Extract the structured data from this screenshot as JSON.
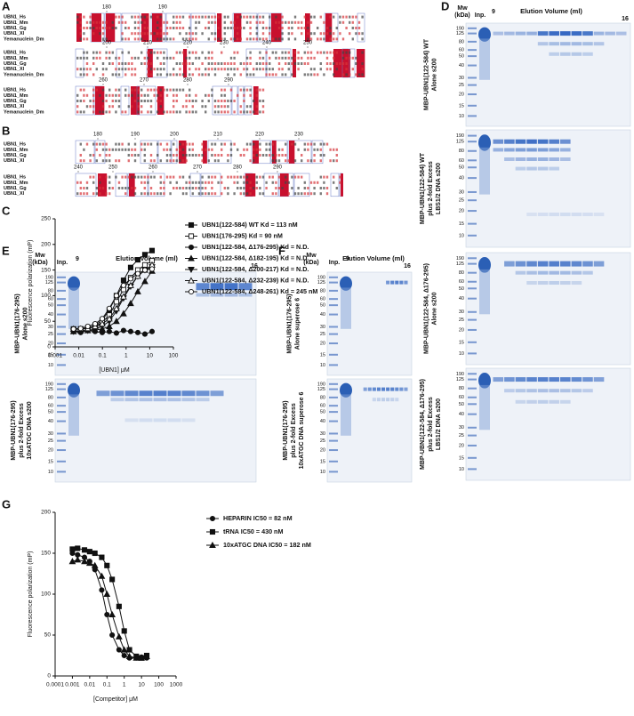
{
  "alignment_a": {
    "panel": "A",
    "names": [
      "UBN1_Hs",
      "UBN1_Mm",
      "UBN1_Gg",
      "UBN1_Xl",
      "Yemanuclein_Dm"
    ],
    "blocks": [
      {
        "positions": [
          180,
          190
        ]
      },
      {
        "positions": [
          200,
          210,
          220,
          230,
          240,
          250
        ]
      },
      {
        "positions": [
          260,
          270,
          280,
          290
        ]
      }
    ]
  },
  "alignment_b": {
    "panel": "B",
    "names": [
      "UBN1_Hs",
      "UBN1_Mm",
      "UBN1_Gg",
      "UBN1_Xl"
    ],
    "blocks": [
      {
        "positions": [
          180,
          190,
          200,
          210,
          220,
          230
        ]
      },
      {
        "positions": [
          240,
          250,
          260,
          270,
          280,
          290
        ]
      }
    ]
  },
  "gel_d": {
    "panel": "D",
    "mw": "Mw",
    "kda": "(kDa)",
    "input": "Inp.",
    "start": "9",
    "title": "Elution Volume (ml)",
    "end": "16",
    "markers": [
      190,
      125,
      80,
      60,
      50,
      40,
      30,
      25,
      20,
      15,
      10
    ],
    "gels": [
      {
        "lines": [
          "MBP-UBN1(122-584) WT",
          "Alone s200"
        ]
      },
      {
        "lines": [
          "MBP-UBN1(122-584) WT",
          "plus 2-fold Excess",
          "LBS1/2 DNA s200"
        ]
      },
      {
        "lines": [
          "MBP-UBN1(122-584, Δ176-295)",
          "Alone s200"
        ]
      },
      {
        "lines": [
          "MBP-UBN1(122-584, Δ176-295)",
          "plus 2-fold Excess",
          "LBS1/2 DNA s200"
        ]
      }
    ]
  },
  "gel_e": {
    "panel": "E",
    "mw": "Mw",
    "kda": "(kDa)",
    "input": "Inp.",
    "start": "9",
    "title": "Elution Volume (ml)",
    "end": "16",
    "markers": [
      190,
      125,
      80,
      60,
      50,
      40,
      30,
      25,
      20,
      15,
      10
    ],
    "gels": [
      {
        "lines": [
          "MBP-UBN1(176-295)",
          "Alone s200"
        ]
      },
      {
        "lines": [
          "MBP-UBN1(176-295)",
          "plus 2-fold Excess",
          "10xATGC DNA s200"
        ]
      }
    ]
  },
  "gel_f": {
    "panel": "F",
    "mw": "Mw",
    "kda": "(kDa)",
    "input": "Inp.",
    "start": "9",
    "title": "Elution Volume (ml)",
    "end": "16",
    "markers": [
      190,
      125,
      80,
      60,
      50,
      40,
      30,
      25,
      20,
      15,
      10
    ],
    "gels": [
      {
        "lines": [
          "MBP-UBN1(176-295)",
          "Alone superose 6"
        ]
      },
      {
        "lines": [
          "MBP-UBN1(176-295)",
          "plus 2-fold Excess",
          "10xATGC DNA superose 6"
        ]
      }
    ]
  },
  "chart_data": [
    {
      "type": "line",
      "panel": "C",
      "x_label": "[UBN1] μM",
      "y_label": "Fluorescence polarization (mP)",
      "log_x": true,
      "xlim": [
        0.001,
        100
      ],
      "xticks": [
        0.001,
        0.01,
        0.1,
        1,
        10,
        100
      ],
      "ylim": [
        0,
        250
      ],
      "yticks": [
        0,
        50,
        100,
        150,
        200,
        250
      ],
      "x": [
        0.006,
        0.012,
        0.024,
        0.049,
        0.098,
        0.195,
        0.39,
        0.78,
        1.56,
        3.13,
        6.25,
        12.5
      ],
      "series": [
        {
          "name": "UBN1(122-584) WT Kd = 113 nM",
          "color": "#111111",
          "marker": "square",
          "filled": true,
          "values": [
            35,
            35,
            37,
            42,
            52,
            72,
            100,
            130,
            155,
            170,
            180,
            188
          ]
        },
        {
          "name": "UBN1(176-295) Kd = 90 nM",
          "color": "#111111",
          "marker": "square",
          "filled": false,
          "values": [
            34,
            35,
            36,
            40,
            48,
            62,
            88,
            112,
            135,
            150,
            160,
            168
          ]
        },
        {
          "name": "UBN1(122-584, Δ176-295) Kd = N.D.",
          "color": "#111111",
          "marker": "circle",
          "filled": true,
          "values": [
            30,
            28,
            32,
            30,
            28,
            30,
            27,
            32,
            30,
            28,
            25,
            30
          ]
        },
        {
          "name": "UBN1(122-584, Δ182-195) Kd = N.D.",
          "color": "#111111",
          "marker": "triangle",
          "filled": true,
          "values": [
            30,
            32,
            32,
            33,
            35,
            40,
            50,
            65,
            85,
            108,
            128,
            148
          ]
        },
        {
          "name": "UBN1(122-584, Δ200-217) Kd = N.D.",
          "color": "#111111",
          "marker": "triangle-down",
          "filled": true,
          "values": [
            30,
            30,
            32,
            35,
            40,
            50,
            70,
            95,
            118,
            138,
            150,
            156
          ]
        },
        {
          "name": "UBN1(122-584, Δ232-239) Kd = N.D.",
          "color": "#111111",
          "marker": "triangle",
          "filled": false,
          "values": [
            35,
            35,
            36,
            40,
            45,
            55,
            75,
            98,
            120,
            138,
            150,
            160
          ]
        },
        {
          "name": "UBN1(122-584, Δ248-261) Kd = 245 nM",
          "color": "#111111",
          "marker": "circle",
          "filled": false,
          "values": [
            35,
            36,
            40,
            45,
            55,
            75,
            100,
            120,
            133,
            143,
            150,
            152
          ]
        }
      ]
    },
    {
      "type": "line",
      "panel": "G",
      "x_label": "[Competitor] μM",
      "y_label": "Fluorescence polarization (mP)",
      "log_x": true,
      "xlim": [
        0.0001,
        1000
      ],
      "xticks": [
        0.0001,
        0.001,
        0.01,
        0.1,
        1,
        10,
        100,
        1000
      ],
      "ylim": [
        0,
        200
      ],
      "yticks": [
        0,
        50,
        100,
        150,
        200
      ],
      "x": [
        0.001,
        0.002,
        0.005,
        0.01,
        0.02,
        0.05,
        0.1,
        0.2,
        0.5,
        1,
        2,
        5,
        10,
        20
      ],
      "series": [
        {
          "name": "HEPARIN IC50 = 82 nM",
          "color": "#111111",
          "marker": "circle",
          "filled": true,
          "values": [
            150,
            148,
            145,
            140,
            130,
            105,
            75,
            50,
            32,
            25,
            22,
            22,
            23,
            22
          ]
        },
        {
          "name": "tRNA IC50 = 430 nM",
          "color": "#111111",
          "marker": "square",
          "filled": true,
          "values": [
            155,
            156,
            154,
            152,
            150,
            145,
            135,
            118,
            85,
            55,
            32,
            24,
            22,
            25
          ]
        },
        {
          "name": "10xATGC DNA IC50 = 182 nM",
          "color": "#111111",
          "marker": "triangle",
          "filled": true,
          "values": [
            140,
            142,
            140,
            138,
            135,
            122,
            100,
            75,
            48,
            32,
            24,
            22,
            22,
            24
          ]
        }
      ]
    }
  ]
}
